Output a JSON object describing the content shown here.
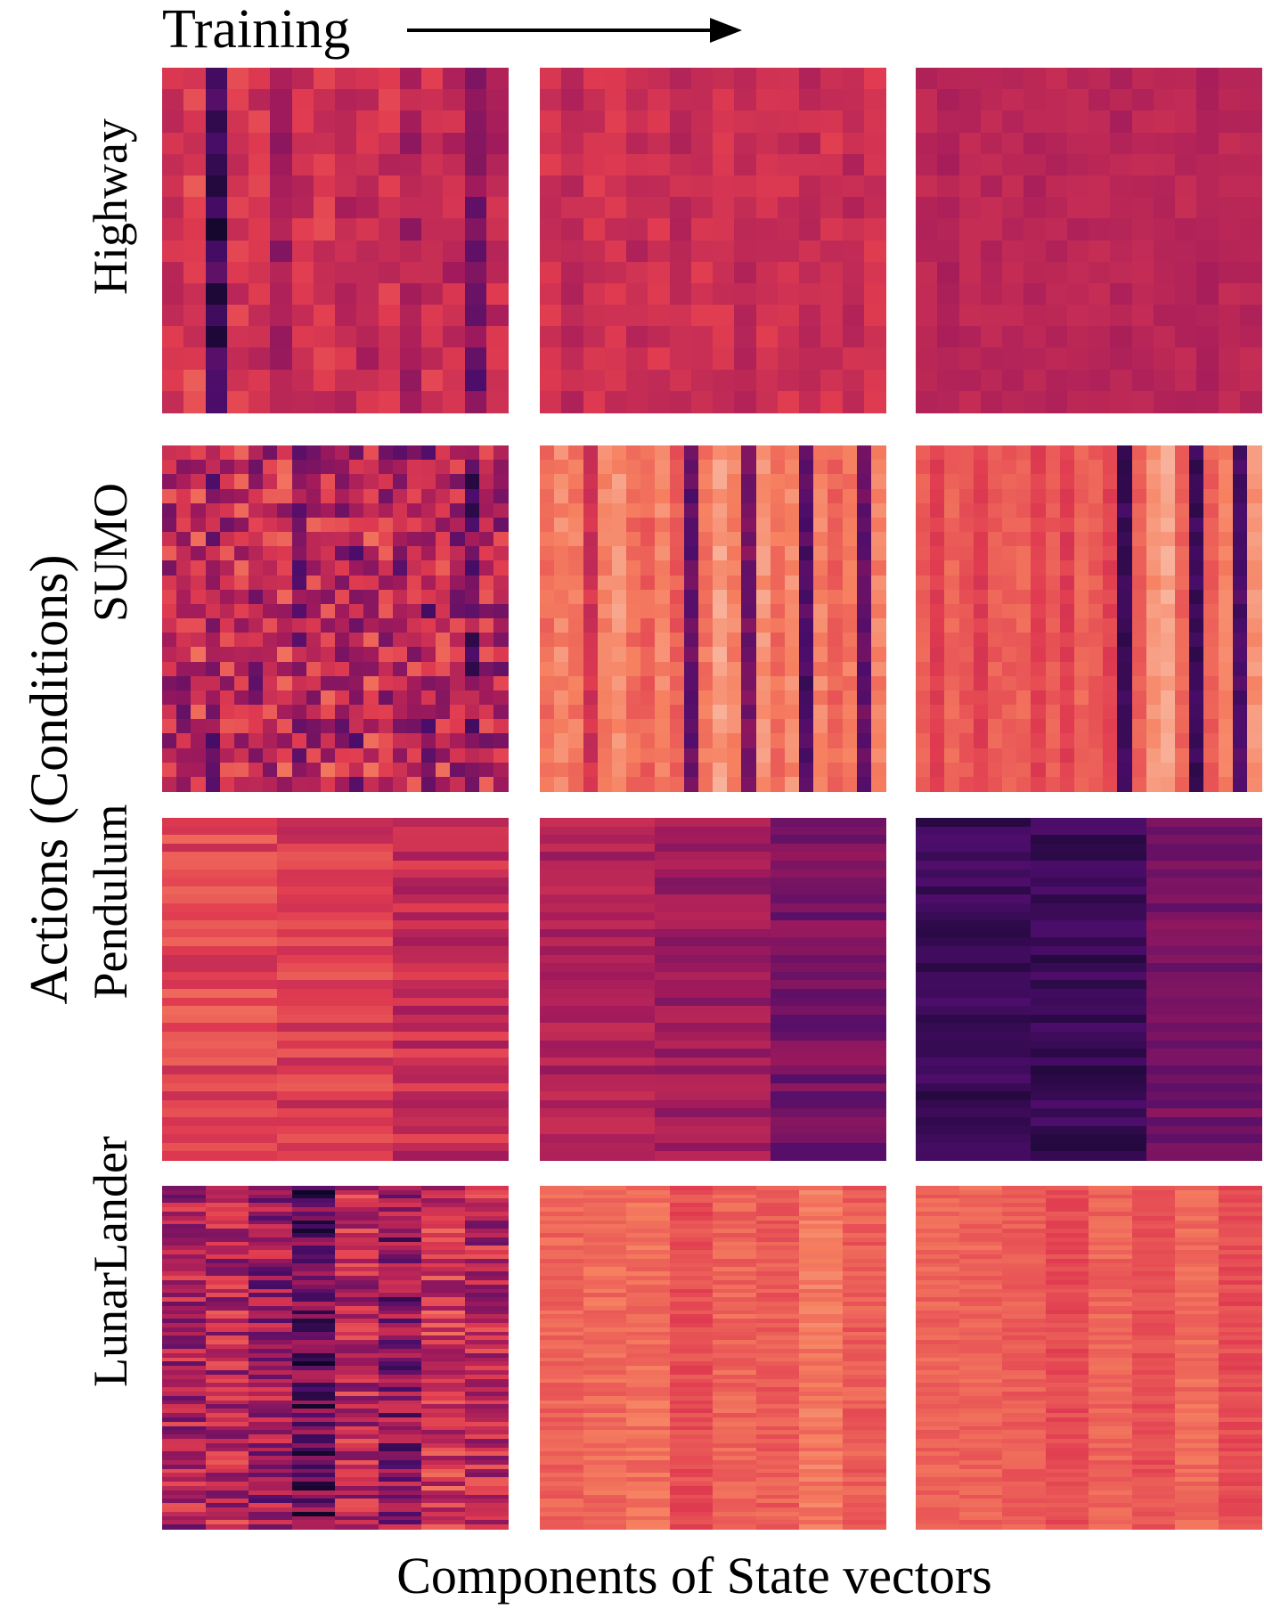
{
  "chart_data": {
    "type": "heatmap",
    "title": "",
    "top_label": "Training",
    "xlabel": "Components of State vectors",
    "ylabel": "Actions (Conditions)",
    "colormap": [
      "#03051a",
      "#4c0d6b",
      "#a11a5b",
      "#e03b50",
      "#f68060",
      "#f9c9b6"
    ],
    "value_range": [
      0,
      1
    ],
    "columns_meaning": "training progress (left to right)",
    "rows": [
      {
        "name": "Highway",
        "n_components": 16,
        "n_conditions": 16,
        "stages": [
          {
            "col_means": [
              0.55,
              0.6,
              0.15,
              0.55,
              0.55,
              0.4,
              0.55,
              0.55,
              0.5,
              0.5,
              0.55,
              0.45,
              0.55,
              0.5,
              0.3,
              0.5
            ],
            "noise": 0.1
          },
          {
            "col_means": [
              0.55,
              0.5,
              0.55,
              0.55,
              0.5,
              0.55,
              0.5,
              0.55,
              0.55,
              0.5,
              0.55,
              0.55,
              0.5,
              0.55,
              0.5,
              0.55
            ],
            "noise": 0.06
          },
          {
            "col_means": [
              0.48,
              0.45,
              0.48,
              0.48,
              0.48,
              0.46,
              0.48,
              0.48,
              0.48,
              0.46,
              0.48,
              0.48,
              0.48,
              0.46,
              0.48,
              0.48
            ],
            "noise": 0.04
          }
        ]
      },
      {
        "name": "SUMO",
        "n_components": 24,
        "n_conditions": 24,
        "stages": [
          {
            "col_means": [
              0.5,
              0.45,
              0.55,
              0.4,
              0.5,
              0.55,
              0.45,
              0.5,
              0.55,
              0.4,
              0.5,
              0.55,
              0.45,
              0.4,
              0.55,
              0.5,
              0.45,
              0.5,
              0.4,
              0.55,
              0.45,
              0.3,
              0.5,
              0.45
            ],
            "noise": 0.22
          },
          {
            "col_means": [
              0.75,
              0.82,
              0.78,
              0.55,
              0.8,
              0.85,
              0.75,
              0.72,
              0.8,
              0.7,
              0.25,
              0.78,
              0.88,
              0.8,
              0.3,
              0.85,
              0.75,
              0.82,
              0.2,
              0.8,
              0.72,
              0.78,
              0.25,
              0.8
            ],
            "noise": 0.06
          },
          {
            "col_means": [
              0.7,
              0.6,
              0.72,
              0.68,
              0.6,
              0.7,
              0.7,
              0.72,
              0.62,
              0.7,
              0.6,
              0.72,
              0.7,
              0.62,
              0.15,
              0.7,
              0.85,
              0.9,
              0.72,
              0.15,
              0.7,
              0.8,
              0.2,
              0.85
            ],
            "noise": 0.04
          }
        ]
      },
      {
        "name": "Pendulum",
        "n_components": 3,
        "n_conditions": 40,
        "stages": [
          {
            "col_means": [
              0.62,
              0.58,
              0.52
            ],
            "noise": 0.12
          },
          {
            "col_means": [
              0.45,
              0.4,
              0.3
            ],
            "noise": 0.08
          },
          {
            "col_means": [
              0.15,
              0.15,
              0.3
            ],
            "noise": 0.06
          }
        ]
      },
      {
        "name": "LunarLander",
        "n_components": 8,
        "n_conditions": 80,
        "stages": [
          {
            "col_means": [
              0.45,
              0.48,
              0.4,
              0.25,
              0.5,
              0.35,
              0.55,
              0.48
            ],
            "noise": 0.22
          },
          {
            "col_means": [
              0.72,
              0.74,
              0.75,
              0.65,
              0.72,
              0.7,
              0.78,
              0.7
            ],
            "noise": 0.06
          },
          {
            "col_means": [
              0.72,
              0.72,
              0.7,
              0.65,
              0.72,
              0.66,
              0.74,
              0.65
            ],
            "noise": 0.05
          }
        ]
      }
    ]
  }
}
